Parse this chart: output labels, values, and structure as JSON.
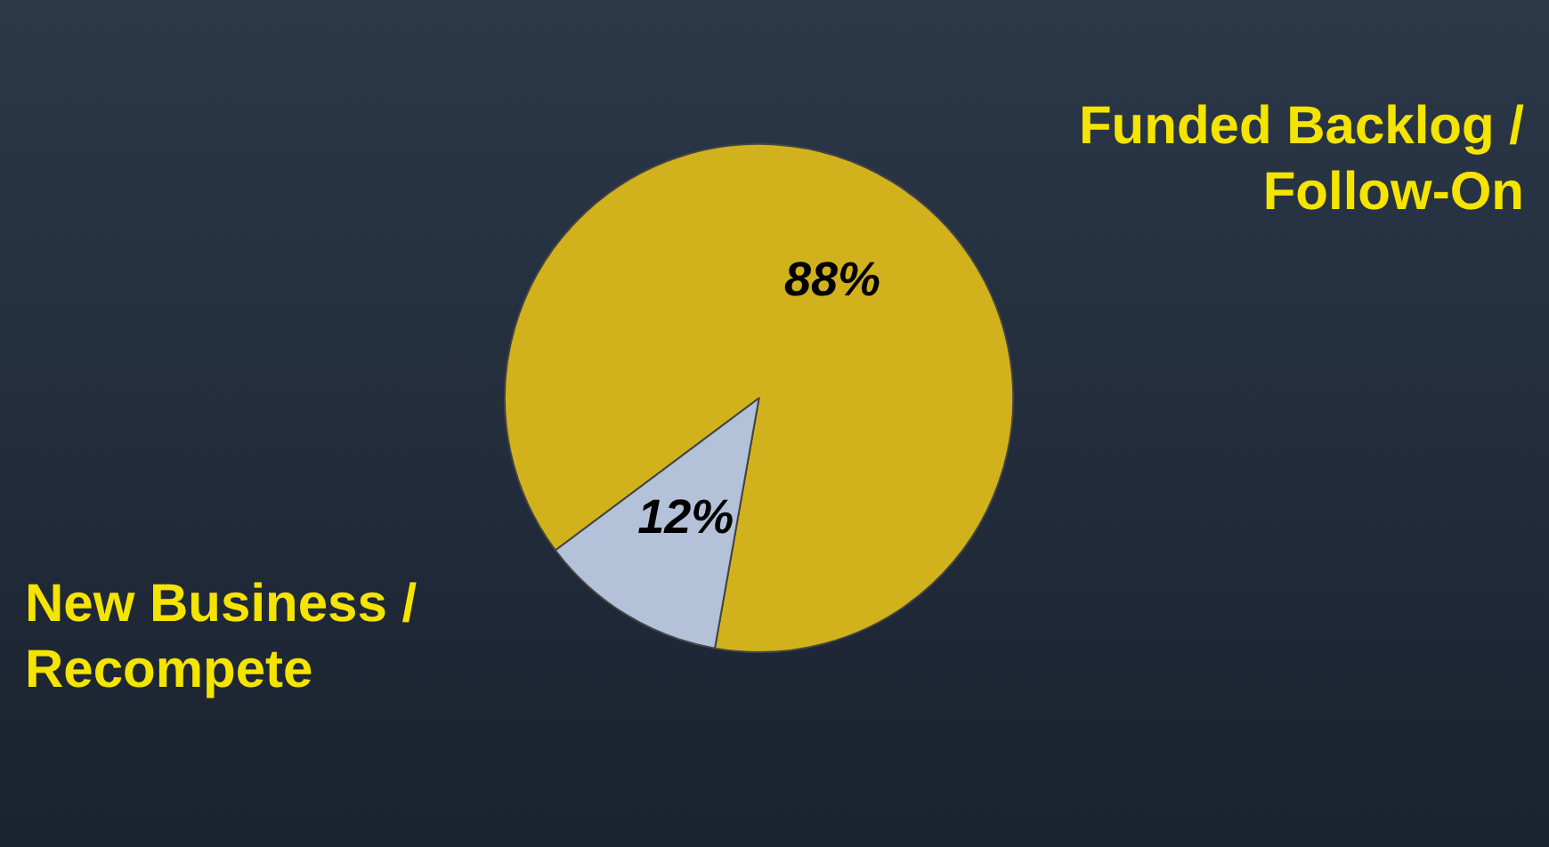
{
  "chart_data": {
    "type": "pie",
    "categories": [
      "Funded Backlog / Follow-On",
      "New Business / Recompete"
    ],
    "values": [
      88,
      12
    ],
    "value_labels": [
      "88%",
      "12%"
    ],
    "colors": [
      "#d2b21c",
      "#b3c1d9"
    ]
  }
}
